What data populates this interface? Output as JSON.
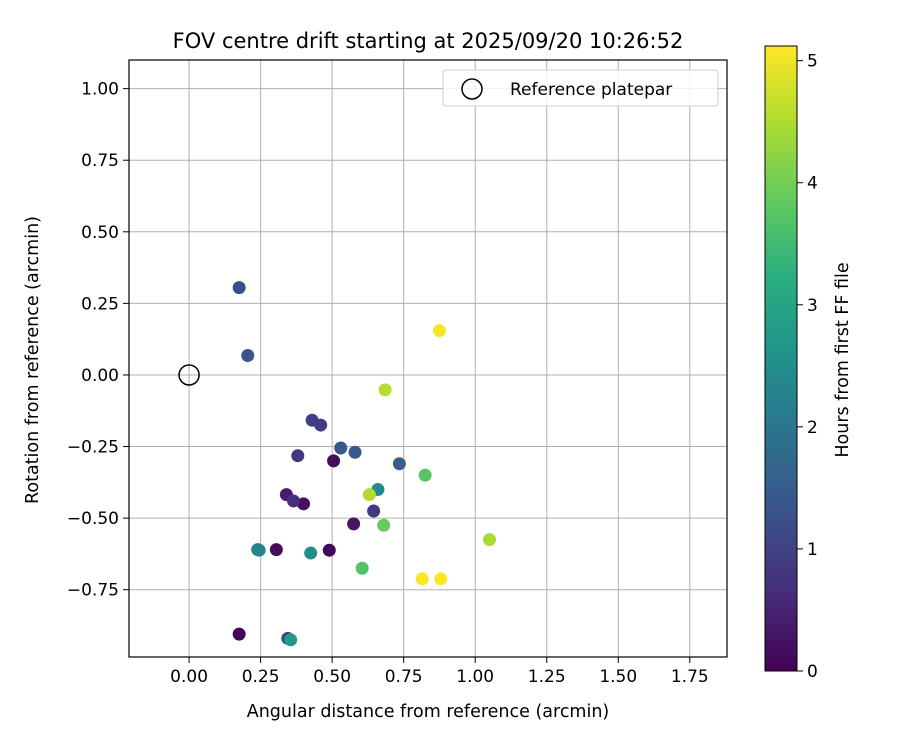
{
  "chart_data": {
    "type": "scatter",
    "title": "FOV centre drift starting at 2025/09/20 10:26:52",
    "xlabel": "Angular distance from reference (arcmin)",
    "ylabel": "Rotation from reference (arcmin)",
    "xlim": [
      -0.21,
      1.88
    ],
    "ylim": [
      -0.985,
      1.1
    ],
    "xticks": [
      0.0,
      0.25,
      0.5,
      0.75,
      1.0,
      1.25,
      1.5,
      1.75
    ],
    "xtick_labels": [
      "0.00",
      "0.25",
      "0.50",
      "0.75",
      "1.00",
      "1.25",
      "1.50",
      "1.75"
    ],
    "yticks": [
      -0.75,
      -0.5,
      -0.25,
      0.0,
      0.25,
      0.5,
      0.75,
      1.0
    ],
    "ytick_labels": [
      "−0.75",
      "−0.50",
      "−0.25",
      "0.00",
      "0.25",
      "0.50",
      "0.75",
      "1.00"
    ],
    "grid": true,
    "legend": {
      "position": "top-right",
      "entries": [
        "Reference platepar"
      ]
    },
    "reference_point": {
      "x": 0.0,
      "y": 0.0,
      "label": "Reference platepar"
    },
    "colorbar": {
      "label": "Hours from first FF file",
      "colormap": "viridis",
      "range": [
        0,
        5.12
      ],
      "ticks": [
        0,
        1,
        2,
        3,
        4,
        5
      ],
      "tick_labels": [
        "0",
        "1",
        "2",
        "3",
        "4",
        "5"
      ]
    },
    "points": [
      {
        "x": 0.175,
        "y": -0.905,
        "h": 0.05
      },
      {
        "x": 0.49,
        "y": -0.612,
        "h": 0.1
      },
      {
        "x": 0.305,
        "y": -0.61,
        "h": 0.15
      },
      {
        "x": 0.505,
        "y": -0.3,
        "h": 0.2
      },
      {
        "x": 0.4,
        "y": -0.45,
        "h": 0.25
      },
      {
        "x": 0.575,
        "y": -0.52,
        "h": 0.3
      },
      {
        "x": 0.34,
        "y": -0.418,
        "h": 0.4
      },
      {
        "x": 0.365,
        "y": -0.44,
        "h": 0.7
      },
      {
        "x": 0.38,
        "y": -0.282,
        "h": 0.8
      },
      {
        "x": 0.645,
        "y": -0.475,
        "h": 0.85
      },
      {
        "x": 0.46,
        "y": -0.175,
        "h": 0.9
      },
      {
        "x": 0.43,
        "y": -0.158,
        "h": 0.95
      },
      {
        "x": 0.345,
        "y": -0.92,
        "h": 1.05
      },
      {
        "x": 0.175,
        "y": 0.305,
        "h": 1.2
      },
      {
        "x": 0.205,
        "y": 0.068,
        "h": 1.3
      },
      {
        "x": 0.53,
        "y": -0.255,
        "h": 1.4
      },
      {
        "x": 0.58,
        "y": -0.27,
        "h": 1.45
      },
      {
        "x": 0.735,
        "y": -0.31,
        "h": 1.6
      },
      {
        "x": 0.24,
        "y": -0.61,
        "h": 2.0
      },
      {
        "x": 0.245,
        "y": -0.612,
        "h": 2.3
      },
      {
        "x": 0.66,
        "y": -0.4,
        "h": 2.4
      },
      {
        "x": 0.425,
        "y": -0.622,
        "h": 2.5
      },
      {
        "x": 0.355,
        "y": -0.925,
        "h": 2.7
      },
      {
        "x": 0.605,
        "y": -0.675,
        "h": 3.7
      },
      {
        "x": 0.825,
        "y": -0.35,
        "h": 3.75
      },
      {
        "x": 0.68,
        "y": -0.525,
        "h": 3.9
      },
      {
        "x": 0.63,
        "y": -0.418,
        "h": 4.5
      },
      {
        "x": 1.05,
        "y": -0.575,
        "h": 4.45
      },
      {
        "x": 0.685,
        "y": -0.052,
        "h": 4.55
      },
      {
        "x": 0.875,
        "y": 0.155,
        "h": 5.05
      },
      {
        "x": 0.815,
        "y": -0.712,
        "h": 5.1
      },
      {
        "x": 0.88,
        "y": -0.712,
        "h": 5.12
      }
    ]
  }
}
